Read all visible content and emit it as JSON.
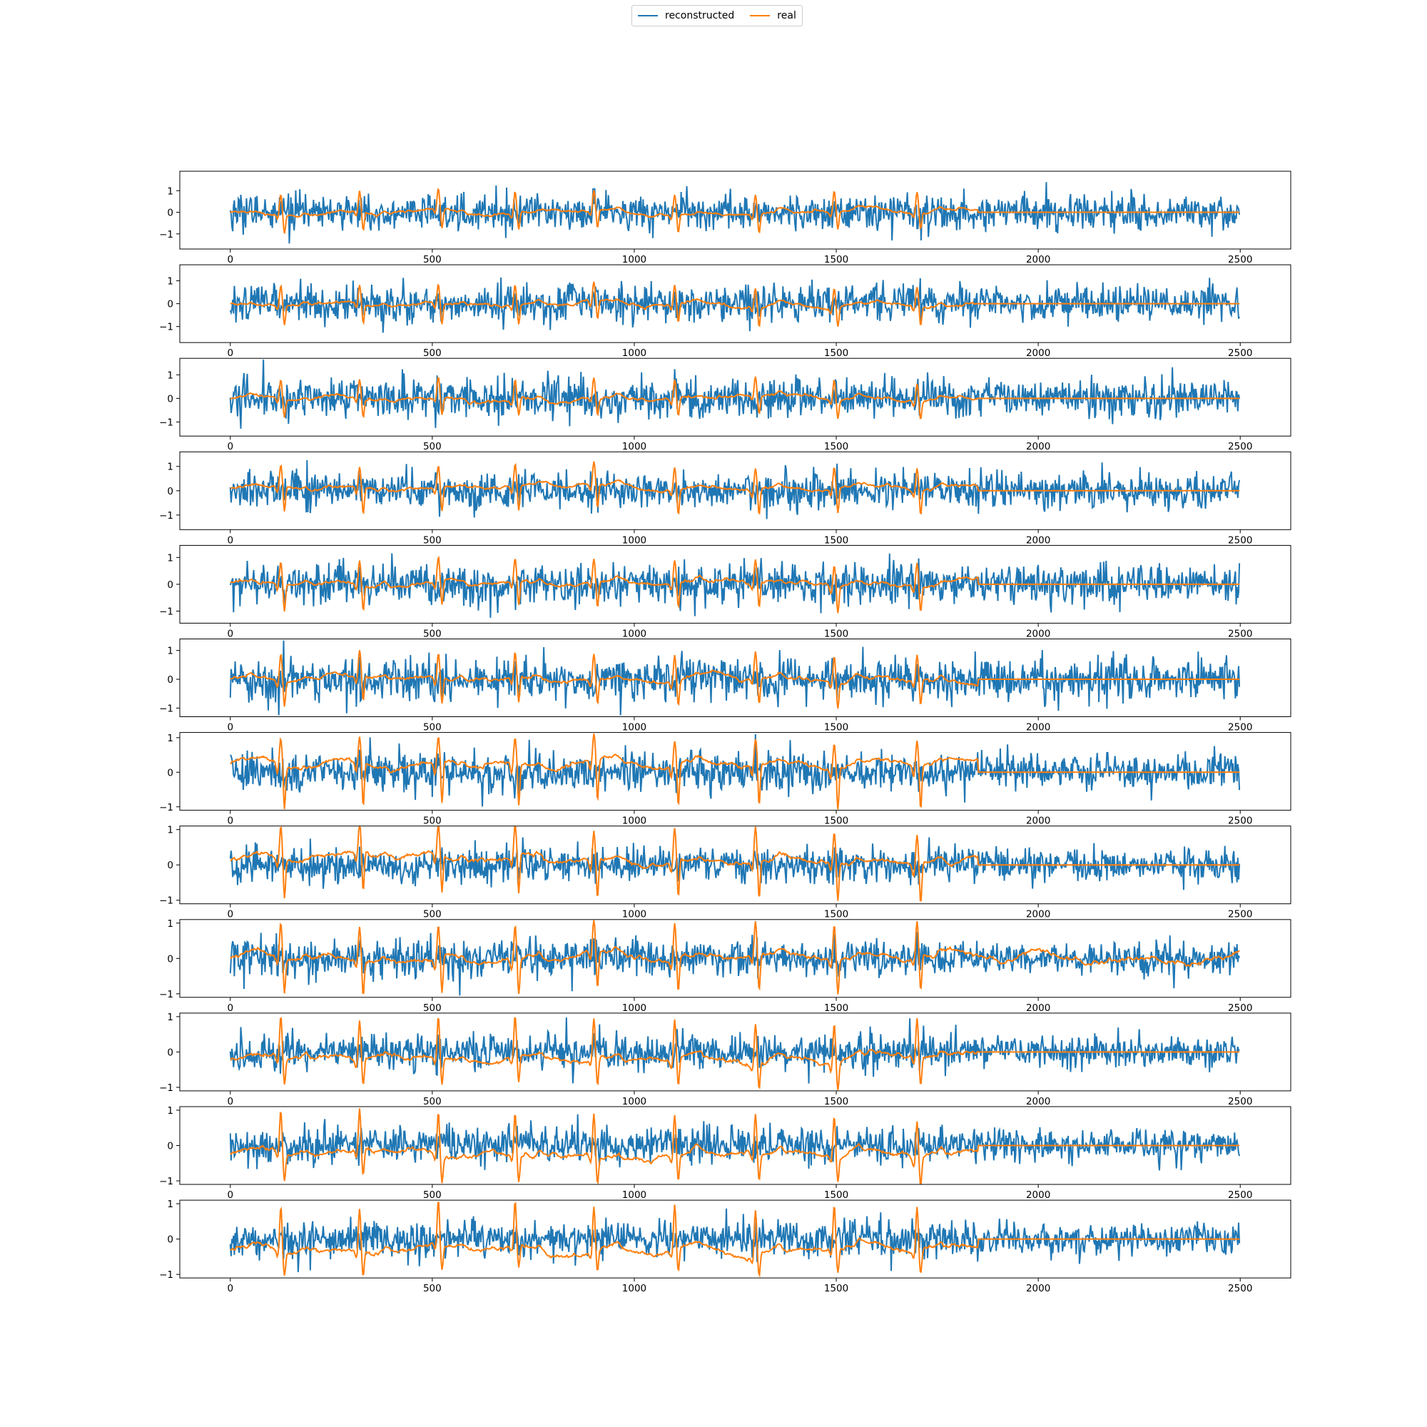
{
  "colors": {
    "reconstructed": "#1f77b4",
    "real": "#ff7f0e"
  },
  "legend": {
    "placement": "top-center",
    "entries": [
      {
        "label": "reconstructed",
        "color": "#1f77b4"
      },
      {
        "label": "real",
        "color": "#ff7f0e"
      }
    ]
  },
  "chart_data": [
    {
      "type": "line",
      "title": "",
      "xlabel": "",
      "ylabel": "",
      "xlim": [
        -125,
        2625
      ],
      "ylim": [
        -1.7,
        1.9
      ],
      "xticks": [
        "0",
        "500",
        "1000",
        "1500",
        "2000",
        "2500"
      ],
      "yticks": [
        "-1",
        "0",
        "1"
      ],
      "grid": false,
      "real_active_until": 1850,
      "real_baseline": 0.0,
      "real_spike_max": 0.95,
      "real_spike_min": -0.85,
      "recon_amplitude": 0.55,
      "spike_positions": [
        125,
        320,
        515,
        705,
        900,
        1100,
        1300,
        1495,
        1700
      ],
      "series": [
        {
          "name": "reconstructed"
        },
        {
          "name": "real"
        }
      ]
    },
    {
      "type": "line",
      "title": "",
      "xlabel": "",
      "ylabel": "",
      "xlim": [
        -125,
        2625
      ],
      "ylim": [
        -1.7,
        1.7
      ],
      "xticks": [
        "0",
        "500",
        "1000",
        "1500",
        "2000",
        "2500"
      ],
      "yticks": [
        "-1",
        "0",
        "1"
      ],
      "grid": false,
      "real_active_until": 1850,
      "real_baseline": 0.0,
      "real_spike_max": 0.85,
      "real_spike_min": -0.85,
      "recon_amplitude": 0.55,
      "spike_positions": [
        125,
        320,
        515,
        705,
        900,
        1100,
        1300,
        1495,
        1700
      ],
      "series": [
        {
          "name": "reconstructed"
        },
        {
          "name": "real"
        }
      ]
    },
    {
      "type": "line",
      "title": "",
      "xlabel": "",
      "ylabel": "",
      "xlim": [
        -125,
        2625
      ],
      "ylim": [
        -1.6,
        1.7
      ],
      "xticks": [
        "0",
        "500",
        "1000",
        "1500",
        "2000",
        "2500"
      ],
      "yticks": [
        "-1",
        "0",
        "1"
      ],
      "grid": false,
      "real_active_until": 1850,
      "real_baseline": 0.0,
      "real_spike_max": 0.85,
      "real_spike_min": -0.75,
      "recon_amplitude": 0.55,
      "spike_positions": [
        125,
        320,
        515,
        705,
        900,
        1100,
        1300,
        1495,
        1700
      ],
      "series": [
        {
          "name": "reconstructed"
        },
        {
          "name": "real"
        }
      ]
    },
    {
      "type": "line",
      "title": "",
      "xlabel": "",
      "ylabel": "",
      "xlim": [
        -125,
        2625
      ],
      "ylim": [
        -1.6,
        1.6
      ],
      "xticks": [
        "0",
        "500",
        "1000",
        "1500",
        "2000",
        "2500"
      ],
      "yticks": [
        "-1",
        "0",
        "1"
      ],
      "grid": false,
      "real_active_until": 1850,
      "real_baseline": 0.1,
      "real_spike_max": 1.0,
      "real_spike_min": -0.95,
      "recon_amplitude": 0.5,
      "spike_positions": [
        125,
        320,
        515,
        705,
        900,
        1100,
        1300,
        1495,
        1700
      ],
      "series": [
        {
          "name": "reconstructed"
        },
        {
          "name": "real"
        }
      ]
    },
    {
      "type": "line",
      "title": "",
      "xlabel": "",
      "ylabel": "",
      "xlim": [
        -125,
        2625
      ],
      "ylim": [
        -1.45,
        1.45
      ],
      "xticks": [
        "0",
        "500",
        "1000",
        "1500",
        "2000",
        "2500"
      ],
      "yticks": [
        "-1",
        "0",
        "1"
      ],
      "grid": false,
      "real_active_until": 1850,
      "real_baseline": 0.05,
      "real_spike_max": 0.9,
      "real_spike_min": -0.9,
      "recon_amplitude": 0.5,
      "spike_positions": [
        125,
        320,
        515,
        705,
        900,
        1100,
        1300,
        1495,
        1700
      ],
      "series": [
        {
          "name": "reconstructed"
        },
        {
          "name": "real"
        }
      ]
    },
    {
      "type": "line",
      "title": "",
      "xlabel": "",
      "ylabel": "",
      "xlim": [
        -125,
        2625
      ],
      "ylim": [
        -1.3,
        1.4
      ],
      "xticks": [
        "0",
        "500",
        "1000",
        "1500",
        "2000",
        "2500"
      ],
      "yticks": [
        "-1",
        "0",
        "1"
      ],
      "grid": false,
      "real_active_until": 1850,
      "real_baseline": 0.0,
      "real_spike_max": 0.9,
      "real_spike_min": -0.9,
      "recon_amplitude": 0.5,
      "spike_positions": [
        125,
        320,
        515,
        705,
        900,
        1100,
        1300,
        1495,
        1700
      ],
      "series": [
        {
          "name": "reconstructed"
        },
        {
          "name": "real"
        }
      ]
    },
    {
      "type": "line",
      "title": "",
      "xlabel": "",
      "ylabel": "",
      "xlim": [
        -125,
        2625
      ],
      "ylim": [
        -1.1,
        1.15
      ],
      "xticks": [
        "0",
        "500",
        "1000",
        "1500",
        "2000",
        "2500"
      ],
      "yticks": [
        "-1",
        "0",
        "1"
      ],
      "grid": false,
      "real_active_until": 1850,
      "real_baseline": 0.25,
      "real_spike_max": 0.98,
      "real_spike_min": -0.98,
      "recon_amplitude": 0.4,
      "spike_positions": [
        125,
        320,
        515,
        705,
        900,
        1100,
        1300,
        1495,
        1700
      ],
      "series": [
        {
          "name": "reconstructed"
        },
        {
          "name": "real"
        }
      ]
    },
    {
      "type": "line",
      "title": "",
      "xlabel": "",
      "ylabel": "",
      "xlim": [
        -125,
        2625
      ],
      "ylim": [
        -1.1,
        1.1
      ],
      "xticks": [
        "0",
        "500",
        "1000",
        "1500",
        "2000",
        "2500"
      ],
      "yticks": [
        "-1",
        "0",
        "1"
      ],
      "grid": false,
      "real_active_until": 1850,
      "real_baseline": 0.12,
      "real_spike_max": 1.0,
      "real_spike_min": -0.98,
      "recon_amplitude": 0.35,
      "spike_positions": [
        125,
        320,
        515,
        705,
        900,
        1100,
        1300,
        1495,
        1700
      ],
      "series": [
        {
          "name": "reconstructed"
        },
        {
          "name": "real"
        }
      ]
    },
    {
      "type": "line",
      "title": "",
      "xlabel": "",
      "ylabel": "",
      "xlim": [
        -125,
        2625
      ],
      "ylim": [
        -1.1,
        1.1
      ],
      "xticks": [
        "0",
        "500",
        "1000",
        "1500",
        "2000",
        "2500"
      ],
      "yticks": [
        "-1",
        "0",
        "1"
      ],
      "grid": false,
      "real_active_until": 2500,
      "real_baseline": 0.03,
      "real_spike_max": 0.98,
      "real_spike_min": -0.98,
      "recon_amplitude": 0.35,
      "spike_positions": [
        125,
        320,
        515,
        705,
        900,
        1100,
        1300,
        1495,
        1700
      ],
      "series": [
        {
          "name": "reconstructed"
        },
        {
          "name": "real"
        }
      ]
    },
    {
      "type": "line",
      "title": "",
      "xlabel": "",
      "ylabel": "",
      "xlim": [
        -125,
        2625
      ],
      "ylim": [
        -1.1,
        1.1
      ],
      "xticks": [
        "0",
        "500",
        "1000",
        "1500",
        "2000",
        "2500"
      ],
      "yticks": [
        "-1",
        "0",
        "1"
      ],
      "grid": false,
      "real_active_until": 1850,
      "real_baseline": -0.2,
      "real_spike_max": 0.95,
      "real_spike_min": -0.98,
      "recon_amplitude": 0.35,
      "spike_positions": [
        125,
        320,
        515,
        705,
        900,
        1100,
        1300,
        1495,
        1700
      ],
      "series": [
        {
          "name": "reconstructed"
        },
        {
          "name": "real"
        }
      ]
    },
    {
      "type": "line",
      "title": "",
      "xlabel": "",
      "ylabel": "",
      "xlim": [
        -125,
        2625
      ],
      "ylim": [
        -1.1,
        1.1
      ],
      "xticks": [
        "0",
        "500",
        "1000",
        "1500",
        "2000",
        "2500"
      ],
      "yticks": [
        "-1",
        "0",
        "1"
      ],
      "grid": false,
      "real_active_until": 1850,
      "real_baseline": -0.22,
      "real_spike_max": 0.95,
      "real_spike_min": -0.95,
      "recon_amplitude": 0.35,
      "spike_positions": [
        125,
        320,
        515,
        705,
        900,
        1100,
        1300,
        1495,
        1700
      ],
      "series": [
        {
          "name": "reconstructed"
        },
        {
          "name": "real"
        }
      ]
    },
    {
      "type": "line",
      "title": "",
      "xlabel": "",
      "ylabel": "",
      "xlim": [
        -125,
        2625
      ],
      "ylim": [
        -1.1,
        1.1
      ],
      "xticks": [
        "0",
        "500",
        "1000",
        "1500",
        "2000",
        "2500"
      ],
      "yticks": [
        "-1",
        "0",
        "1"
      ],
      "grid": false,
      "real_active_until": 1850,
      "real_baseline": -0.32,
      "real_spike_max": 0.95,
      "real_spike_min": -0.98,
      "recon_amplitude": 0.35,
      "spike_positions": [
        125,
        320,
        515,
        705,
        900,
        1100,
        1300,
        1495,
        1700
      ],
      "series": [
        {
          "name": "reconstructed"
        },
        {
          "name": "real"
        }
      ]
    }
  ]
}
